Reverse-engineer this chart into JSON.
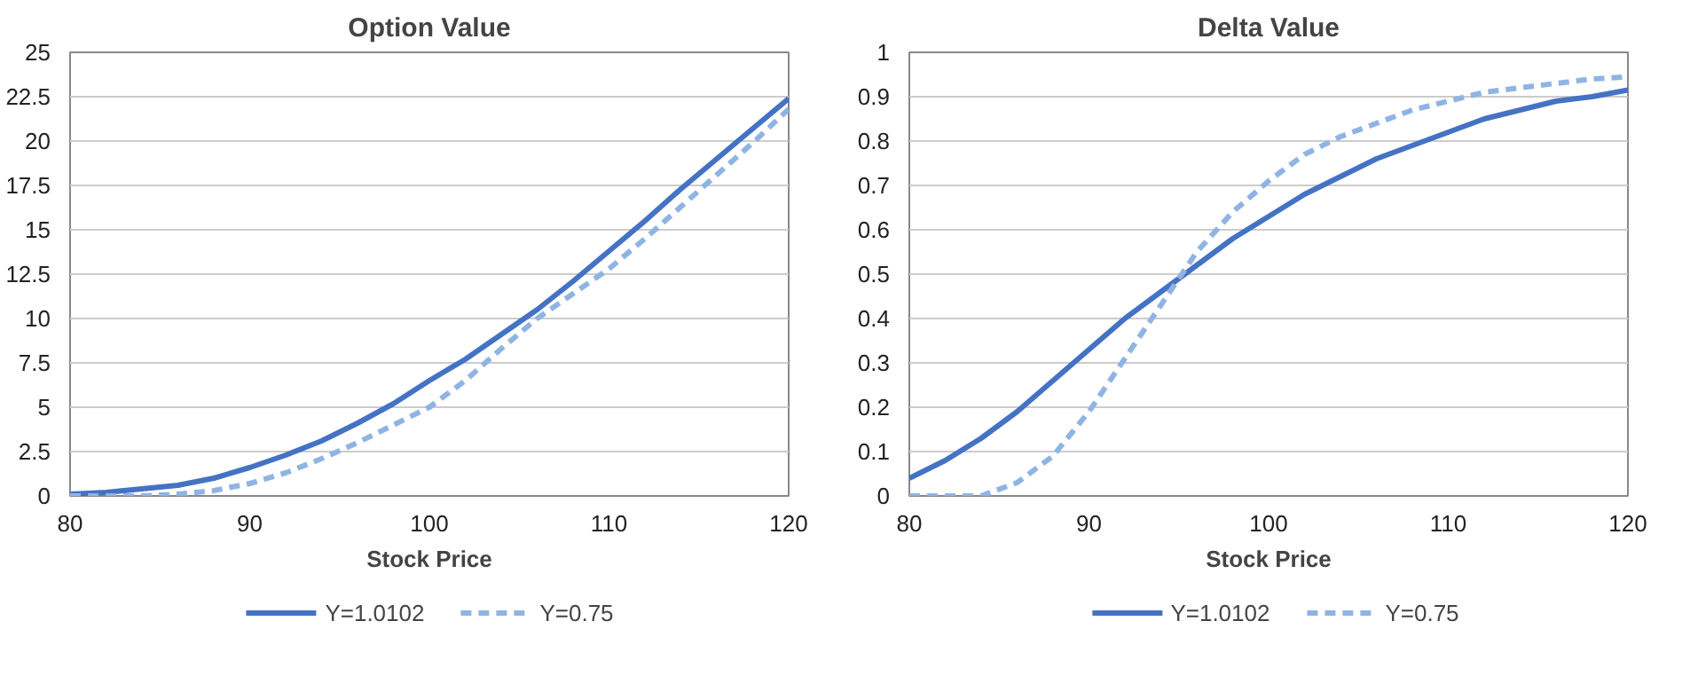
{
  "chart_data": [
    {
      "type": "line",
      "title": "Option Value",
      "xlabel": "Stock Price",
      "x": [
        80,
        82,
        84,
        86,
        88,
        90,
        92,
        94,
        96,
        98,
        100,
        102,
        104,
        106,
        108,
        110,
        112,
        114,
        116,
        118,
        120
      ],
      "xlim": [
        80,
        120
      ],
      "xticks": [
        80,
        90,
        100,
        110,
        120
      ],
      "ylim": [
        0,
        25
      ],
      "yticks": [
        0,
        2.5,
        5,
        7.5,
        10,
        12.5,
        15,
        17.5,
        20,
        22.5,
        25
      ],
      "grid": "y",
      "legend": "bottom",
      "series": [
        {
          "name": "Y=1.0102",
          "color": "#4472c4",
          "line_style": "solid",
          "values": [
            0.1,
            0.2,
            0.4,
            0.6,
            1.0,
            1.6,
            2.3,
            3.1,
            4.1,
            5.2,
            6.5,
            7.7,
            9.1,
            10.5,
            12.1,
            13.8,
            15.5,
            17.3,
            19.0,
            20.7,
            22.4
          ]
        },
        {
          "name": "Y=0.75",
          "color": "#8fb4e3",
          "line_style": "dashed",
          "values": [
            0,
            0,
            0,
            0.1,
            0.3,
            0.7,
            1.3,
            2.1,
            3.0,
            4.0,
            5.0,
            6.5,
            8.3,
            10.0,
            11.4,
            12.8,
            14.5,
            16.3,
            18.1,
            19.9,
            21.8
          ]
        }
      ]
    },
    {
      "type": "line",
      "title": "Delta Value",
      "xlabel": "Stock Price",
      "x": [
        80,
        82,
        84,
        86,
        88,
        90,
        92,
        94,
        96,
        98,
        100,
        102,
        104,
        106,
        108,
        110,
        112,
        114,
        116,
        118,
        120
      ],
      "xlim": [
        80,
        120
      ],
      "xticks": [
        80,
        90,
        100,
        110,
        120
      ],
      "ylim": [
        0,
        1
      ],
      "yticks": [
        0,
        0.1,
        0.2,
        0.3,
        0.4,
        0.5,
        0.6,
        0.7,
        0.8,
        0.9,
        1
      ],
      "grid": "y",
      "legend": "bottom",
      "series": [
        {
          "name": "Y=1.0102",
          "color": "#4472c4",
          "line_style": "solid",
          "values": [
            0.04,
            0.08,
            0.13,
            0.19,
            0.26,
            0.33,
            0.4,
            0.46,
            0.52,
            0.58,
            0.63,
            0.68,
            0.72,
            0.76,
            0.79,
            0.82,
            0.85,
            0.87,
            0.89,
            0.9,
            0.915
          ]
        },
        {
          "name": "Y=0.75",
          "color": "#8fb4e3",
          "line_style": "dashed",
          "values": [
            0,
            0,
            0,
            0.03,
            0.09,
            0.19,
            0.31,
            0.43,
            0.55,
            0.64,
            0.71,
            0.77,
            0.81,
            0.84,
            0.87,
            0.89,
            0.91,
            0.92,
            0.93,
            0.94,
            0.945
          ]
        }
      ]
    }
  ]
}
